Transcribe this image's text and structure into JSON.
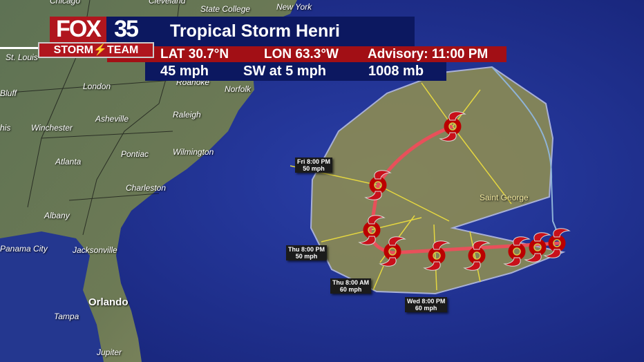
{
  "branding": {
    "fox": "FOX",
    "channel": "35",
    "team": "STORM⚡TEAM"
  },
  "storm": {
    "title": "Tropical Storm Henri",
    "lat": "LAT 30.7°N",
    "lon": "LON 63.3°W",
    "advisory": "Advisory: 11:00 PM",
    "wind": "45 mph",
    "movement": "SW at 5 mph",
    "pressure": "1008 mb"
  },
  "cities": [
    "Chicago",
    "Cleveland",
    "State College",
    "New York",
    "St. Louis",
    "London",
    "Roanoke",
    "Norfolk",
    "Bluff",
    "Asheville",
    "Raleigh",
    "his",
    "Winchester",
    "Pontiac",
    "Wilmington",
    "Atlanta",
    "Charleston",
    "Albany",
    "Panama City",
    "Jacksonville",
    "Orlando",
    "Tampa",
    "Jupiter",
    "Saint George"
  ],
  "forecast_points": [
    {
      "time": "Fri 8:00 PM",
      "wind": "50 mph"
    },
    {
      "time": "Thu 8:00 PM",
      "wind": "50 mph"
    },
    {
      "time": "Thu 8:00 AM",
      "wind": "60 mph"
    },
    {
      "time": "Wed 8:00 PM",
      "wind": "60 mph"
    }
  ],
  "colors": {
    "cone": "#8a8a55",
    "track": "#e8505a",
    "storm_icon": "#c8101a",
    "banner_blue": "#0c1860",
    "banner_red": "#a20f15"
  }
}
